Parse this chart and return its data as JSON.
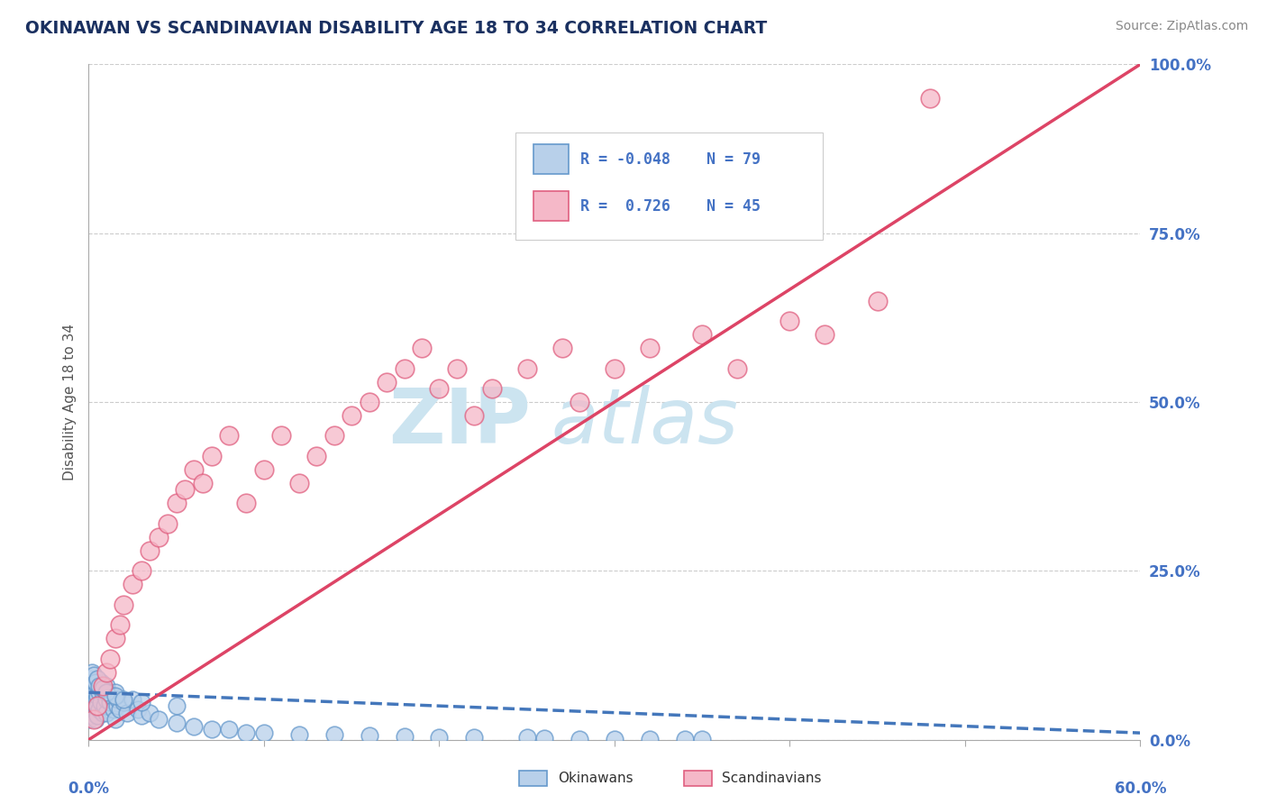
{
  "title": "OKINAWAN VS SCANDINAVIAN DISABILITY AGE 18 TO 34 CORRELATION CHART",
  "source": "Source: ZipAtlas.com",
  "ylabel": "Disability Age 18 to 34",
  "ytick_labels": [
    "0.0%",
    "25.0%",
    "50.0%",
    "75.0%",
    "100.0%"
  ],
  "ytick_vals": [
    0,
    25,
    50,
    75,
    100
  ],
  "xtick_labels": [
    "0.0%",
    "60.0%"
  ],
  "xtick_vals": [
    0,
    60
  ],
  "xlim": [
    0,
    60
  ],
  "ylim": [
    0,
    100
  ],
  "legend_r_okinawan": "-0.048",
  "legend_n_okinawan": "79",
  "legend_r_scandinavian": "0.726",
  "legend_n_scandinavian": "45",
  "okinawan_face_color": "#b8d0ea",
  "okinawan_edge_color": "#6699cc",
  "scandinavian_face_color": "#f5b8c8",
  "scandinavian_edge_color": "#e06080",
  "okinawan_trend_color": "#4477bb",
  "scandinavian_trend_color": "#dd4466",
  "watermark_color": "#cce4f0",
  "title_color": "#1a3060",
  "axis_label_color": "#4472c4",
  "legend_text_color": "#4472c4",
  "okinawan_x": [
    0.05,
    0.1,
    0.1,
    0.1,
    0.1,
    0.15,
    0.2,
    0.2,
    0.2,
    0.25,
    0.3,
    0.3,
    0.3,
    0.35,
    0.4,
    0.4,
    0.4,
    0.45,
    0.5,
    0.5,
    0.5,
    0.5,
    0.6,
    0.6,
    0.7,
    0.7,
    0.8,
    0.8,
    0.9,
    1.0,
    1.0,
    1.0,
    1.1,
    1.2,
    1.3,
    1.4,
    1.5,
    1.5,
    1.6,
    1.7,
    1.8,
    2.0,
    2.2,
    2.5,
    2.8,
    3.0,
    3.5,
    4.0,
    5.0,
    6.0,
    7.0,
    8.0,
    9.0,
    10.0,
    12.0,
    14.0,
    16.0,
    18.0,
    20.0,
    22.0,
    25.0,
    26.0,
    28.0,
    30.0,
    32.0,
    34.0,
    35.0,
    0.1,
    0.2,
    0.3,
    0.4,
    0.5,
    0.6,
    0.8,
    1.0,
    1.5,
    2.0,
    3.0,
    5.0
  ],
  "okinawan_y": [
    3.0,
    5.0,
    6.0,
    7.0,
    8.0,
    4.0,
    3.5,
    5.5,
    7.5,
    6.0,
    4.0,
    6.0,
    8.0,
    7.0,
    3.0,
    5.0,
    7.0,
    6.0,
    3.5,
    5.0,
    6.5,
    8.0,
    4.5,
    7.0,
    5.5,
    8.5,
    4.0,
    7.0,
    5.0,
    4.0,
    6.0,
    8.0,
    7.0,
    5.5,
    6.5,
    4.5,
    3.0,
    7.0,
    5.0,
    6.0,
    4.5,
    5.5,
    4.0,
    6.0,
    4.5,
    3.5,
    4.0,
    3.0,
    2.5,
    2.0,
    1.5,
    1.5,
    1.0,
    1.0,
    0.8,
    0.7,
    0.6,
    0.5,
    0.4,
    0.3,
    0.3,
    0.2,
    0.15,
    0.1,
    0.1,
    0.1,
    0.1,
    9.0,
    10.0,
    9.5,
    8.5,
    9.0,
    8.0,
    7.5,
    7.0,
    6.5,
    6.0,
    5.5,
    5.0
  ],
  "scandinavian_x": [
    0.3,
    0.5,
    0.8,
    1.0,
    1.2,
    1.5,
    1.8,
    2.0,
    2.5,
    3.0,
    3.5,
    4.0,
    4.5,
    5.0,
    5.5,
    6.0,
    6.5,
    7.0,
    8.0,
    9.0,
    10.0,
    11.0,
    12.0,
    13.0,
    14.0,
    15.0,
    16.0,
    17.0,
    18.0,
    19.0,
    20.0,
    21.0,
    22.0,
    23.0,
    25.0,
    27.0,
    28.0,
    30.0,
    32.0,
    35.0,
    37.0,
    40.0,
    42.0,
    45.0,
    48.0
  ],
  "scandinavian_y": [
    3.0,
    5.0,
    8.0,
    10.0,
    12.0,
    15.0,
    17.0,
    20.0,
    23.0,
    25.0,
    28.0,
    30.0,
    32.0,
    35.0,
    37.0,
    40.0,
    38.0,
    42.0,
    45.0,
    35.0,
    40.0,
    45.0,
    38.0,
    42.0,
    45.0,
    48.0,
    50.0,
    53.0,
    55.0,
    58.0,
    52.0,
    55.0,
    48.0,
    52.0,
    55.0,
    58.0,
    50.0,
    55.0,
    58.0,
    60.0,
    55.0,
    62.0,
    60.0,
    65.0,
    95.0
  ],
  "sc_trend_x0": 0,
  "sc_trend_y0": 0,
  "sc_trend_x1": 60,
  "sc_trend_y1": 100,
  "ok_trend_x0": 0,
  "ok_trend_y0": 7.0,
  "ok_trend_x1": 60,
  "ok_trend_y1": 1.0
}
